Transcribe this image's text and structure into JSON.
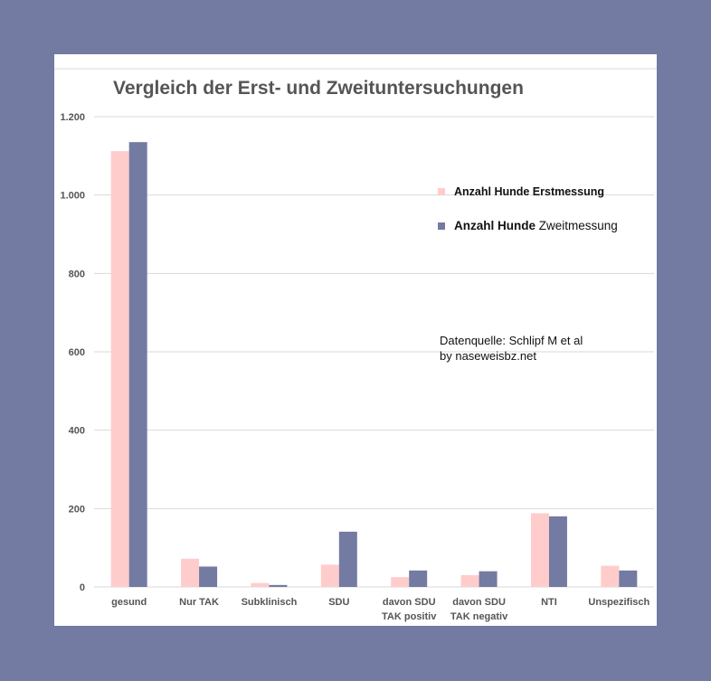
{
  "chart_data": {
    "type": "bar",
    "title": "Vergleich der Erst- und Zweituntersuchungen",
    "categories": [
      [
        "gesund"
      ],
      [
        "Nur TAK"
      ],
      [
        "Subklinisch"
      ],
      [
        "SDU"
      ],
      [
        "davon SDU",
        "TAK positiv"
      ],
      [
        "davon SDU",
        "TAK negativ"
      ],
      [
        "NTI"
      ],
      [
        "Unspezifisch"
      ]
    ],
    "series": [
      {
        "name": "Anzahl Hunde Erstmessung",
        "name_bold": "Anzahl Hunde Erstmessung",
        "name_rest": "",
        "color": "#ffcccc",
        "values": [
          1112,
          72,
          10,
          57,
          25,
          30,
          188,
          54
        ]
      },
      {
        "name": "Anzahl Hunde Zweitmessung",
        "name_bold": "Anzahl Hunde",
        "name_rest": " Zweitmessung",
        "color": "#737ba2",
        "values": [
          1135,
          52,
          5,
          141,
          42,
          40,
          180,
          42
        ]
      }
    ],
    "yticks": [
      0,
      200,
      400,
      600,
      800,
      1000,
      1200
    ],
    "ytick_labels": [
      "0",
      "200",
      "400",
      "600",
      "800",
      "1.000",
      "1.200"
    ],
    "ylim": [
      0,
      1200
    ],
    "grid": true,
    "legend_position": "right",
    "annotation": [
      "Datenquelle: Schlipf M et al",
      "by naseweisbz.net"
    ]
  }
}
